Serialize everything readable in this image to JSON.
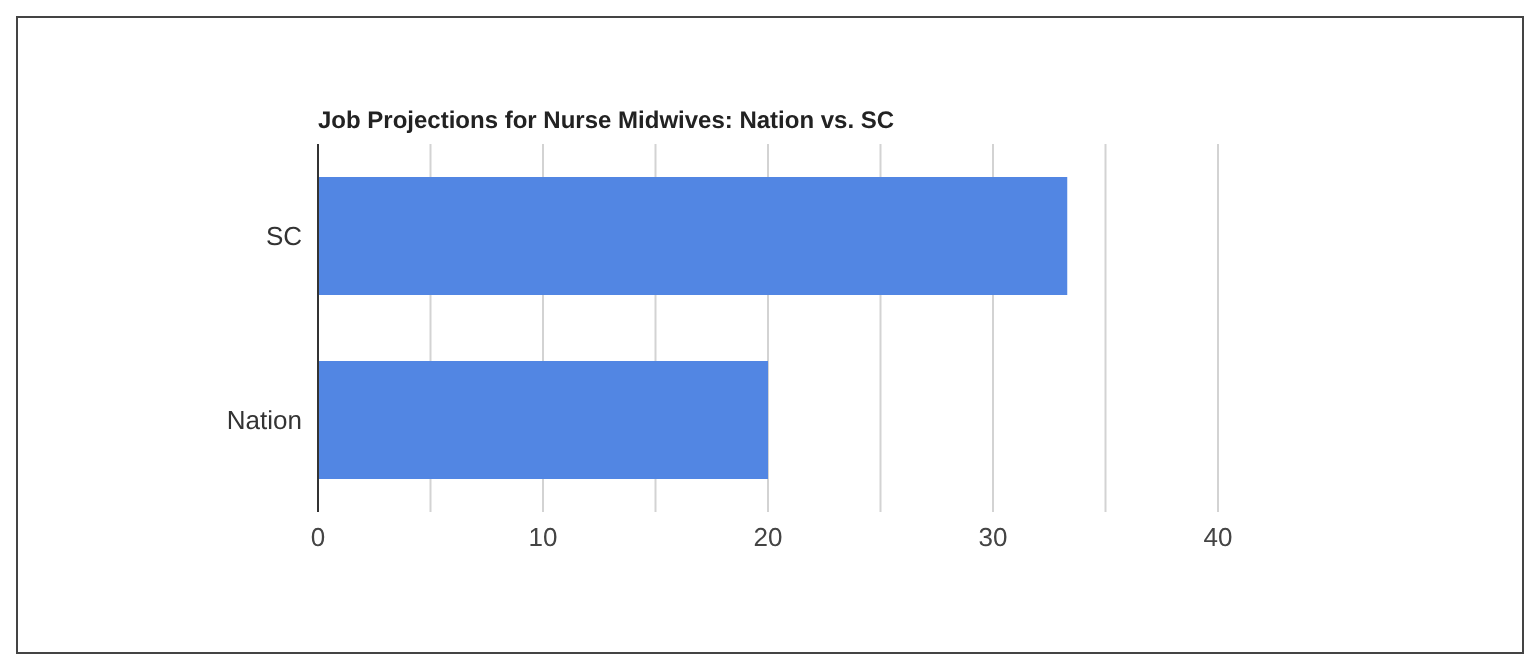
{
  "chart_data": {
    "type": "bar",
    "orientation": "horizontal",
    "title": "Job Projections for Nurse Midwives: Nation vs. SC",
    "categories": [
      "SC",
      "Nation"
    ],
    "values": [
      33.3,
      20
    ],
    "color": "#5286e3",
    "xlim": [
      0,
      40
    ],
    "xticks": [
      0,
      {
        "value": 5,
        "label": null
      },
      10,
      {
        "value": 15,
        "label": null
      },
      20,
      {
        "value": 25,
        "label": null
      },
      30,
      {
        "value": 35,
        "label": null
      },
      40
    ],
    "grid": "x"
  }
}
